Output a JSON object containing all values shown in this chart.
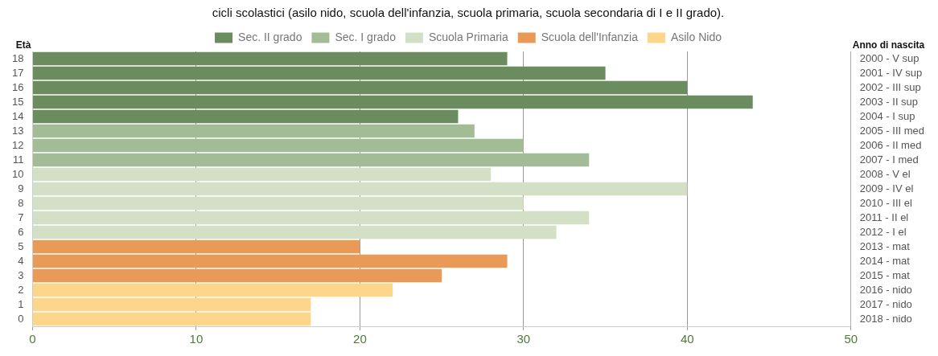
{
  "chart_data": {
    "type": "bar",
    "orientation": "horizontal",
    "stacked": true,
    "title": "cicli scolastici (asilo nido, scuola dell'infanzia, scuola primaria, scuola secondaria di I e II grado).",
    "ylabel": "Età",
    "y2label": "Anno di nascita",
    "categories": [
      "18",
      "17",
      "16",
      "15",
      "14",
      "13",
      "12",
      "11",
      "10",
      "9",
      "8",
      "7",
      "6",
      "5",
      "4",
      "3",
      "2",
      "1",
      "0"
    ],
    "y2_categories": [
      "2000 - V sup",
      "2001 - IV sup",
      "2002 - III sup",
      "2003 - II sup",
      "2004 - I sup",
      "2005 - III med",
      "2006 - II med",
      "2007 - I med",
      "2008 - V el",
      "2009 - IV el",
      "2010 - III el",
      "2011 - II el",
      "2012 - I el",
      "2013 - mat",
      "2014 - mat",
      "2015 - mat",
      "2016 - nido",
      "2017 - nido",
      "2018 - nido"
    ],
    "series": [
      {
        "name": "Sec. II grado",
        "color": "#6b8c5e",
        "values": [
          29,
          35,
          40,
          44,
          26,
          null,
          null,
          null,
          null,
          null,
          null,
          null,
          null,
          null,
          null,
          null,
          null,
          null,
          null
        ]
      },
      {
        "name": "Sec. I grado",
        "color": "#a2bc96",
        "values": [
          null,
          null,
          null,
          null,
          null,
          27,
          30,
          34,
          null,
          null,
          null,
          null,
          null,
          null,
          null,
          null,
          null,
          null,
          null
        ]
      },
      {
        "name": "Scuola Primaria",
        "color": "#d4e0c5",
        "values": [
          null,
          null,
          null,
          null,
          null,
          null,
          null,
          null,
          28,
          40,
          30,
          34,
          32,
          null,
          null,
          null,
          null,
          null,
          null
        ]
      },
      {
        "name": "Scuola dell'Infanzia",
        "color": "#e99a56",
        "values": [
          null,
          null,
          null,
          null,
          null,
          null,
          null,
          null,
          null,
          null,
          null,
          null,
          null,
          20,
          29,
          25,
          null,
          null,
          null
        ]
      },
      {
        "name": "Asilo Nido",
        "color": "#fdd68c",
        "values": [
          null,
          null,
          null,
          null,
          null,
          null,
          null,
          null,
          null,
          null,
          null,
          null,
          null,
          null,
          null,
          null,
          22,
          17,
          17
        ]
      }
    ],
    "xlim": [
      0,
      50
    ],
    "xticks": [
      0,
      10,
      20,
      30,
      40,
      50
    ],
    "grid": "x",
    "legend": "top"
  }
}
